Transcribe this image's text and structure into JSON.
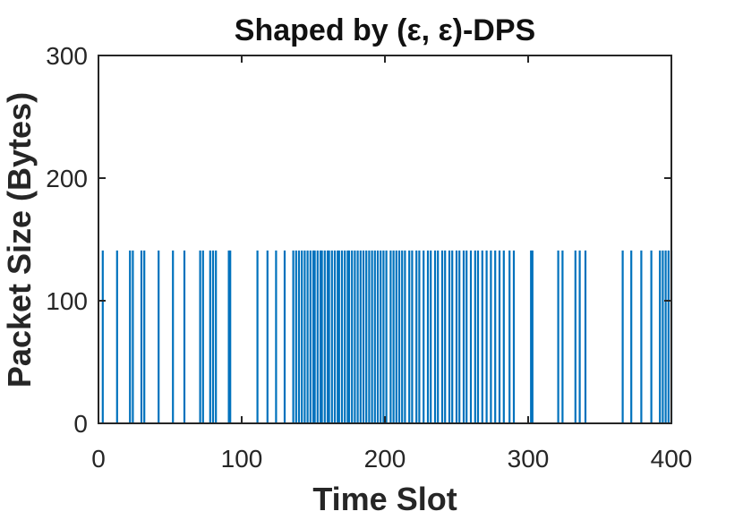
{
  "chart_data": {
    "type": "bar",
    "title": "Shaped by (ε, ε)-DPS",
    "xlabel": "Time Slot",
    "ylabel": "Packet Size (Bytes)",
    "xlim": [
      0,
      400
    ],
    "ylim": [
      0,
      300
    ],
    "xticks": [
      "0",
      "100",
      "200",
      "300",
      "400"
    ],
    "yticks": [
      "0",
      "100",
      "200",
      "300"
    ],
    "color": "#0072BD",
    "grid": false,
    "series": [
      {
        "x": [
          3,
          13,
          22,
          24,
          30,
          32,
          42,
          52,
          60,
          71,
          73,
          78,
          80,
          82,
          91,
          92,
          111,
          118,
          124,
          130,
          136,
          138,
          140,
          142,
          144,
          146,
          148,
          150,
          151,
          153,
          155,
          156,
          158,
          160,
          161,
          163,
          165,
          167,
          168,
          170,
          172,
          174,
          175,
          177,
          179,
          181,
          183,
          185,
          187,
          189,
          191,
          193,
          195,
          197,
          199,
          201,
          204,
          206,
          208,
          210,
          212,
          214,
          217,
          219,
          222,
          224,
          227,
          230,
          232,
          235,
          237,
          240,
          242,
          245,
          247,
          250,
          252,
          255,
          257,
          260,
          263,
          265,
          268,
          271,
          274,
          277,
          280,
          283,
          287,
          290,
          302,
          303,
          321,
          324,
          333,
          336,
          340,
          366,
          372,
          379,
          386,
          392,
          394,
          396,
          398,
          400
        ],
        "values": [
          141,
          141,
          141,
          141,
          141,
          141,
          141,
          141,
          141,
          141,
          141,
          141,
          141,
          141,
          141,
          141,
          141,
          141,
          141,
          141,
          141,
          141,
          141,
          141,
          141,
          141,
          141,
          141,
          141,
          141,
          141,
          141,
          141,
          141,
          141,
          141,
          141,
          141,
          141,
          141,
          141,
          141,
          141,
          141,
          141,
          141,
          141,
          141,
          141,
          141,
          141,
          141,
          141,
          141,
          141,
          141,
          141,
          141,
          141,
          141,
          141,
          141,
          141,
          141,
          141,
          141,
          141,
          141,
          141,
          141,
          141,
          141,
          141,
          141,
          141,
          141,
          141,
          141,
          141,
          141,
          141,
          141,
          141,
          141,
          141,
          141,
          141,
          141,
          141,
          141,
          141,
          141,
          141,
          141,
          141,
          141,
          141,
          141,
          141,
          141,
          141,
          141,
          141,
          141,
          141,
          141
        ]
      }
    ]
  }
}
